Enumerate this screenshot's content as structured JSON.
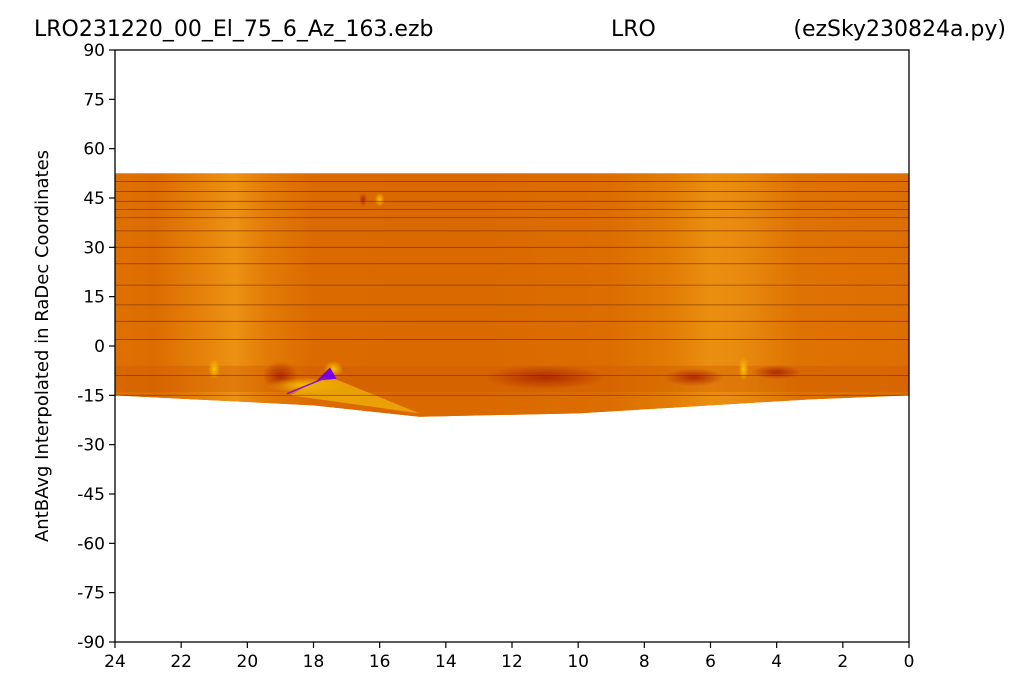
{
  "chart_data": {
    "type": "heatmap",
    "title_left": "LRO231220_00_El_75_6_Az_163.ezb",
    "title_center": "LRO",
    "title_right": "(ezSky230824a.py)",
    "ylabel": "AntBAvg Interpolated in RaDec Coordinates",
    "xlabel": "",
    "xlim": [
      24,
      0
    ],
    "ylim": [
      -90,
      90
    ],
    "xticks": [
      "24",
      "22",
      "20",
      "18",
      "16",
      "14",
      "12",
      "10",
      "8",
      "6",
      "4",
      "2",
      "0"
    ],
    "yticks": [
      "90",
      "75",
      "60",
      "45",
      "30",
      "15",
      "0",
      "-15",
      "-30",
      "-45",
      "-60",
      "-75",
      "-90"
    ],
    "colormap": "gnuplot",
    "colors": {
      "base": "#df7100",
      "bright": "#f0a000",
      "hot": "#f7c000",
      "dark": "#b33000",
      "low": "#7a00e6"
    },
    "coverage": {
      "dec_top": 52.5,
      "dec_band_bottom": -15,
      "dip_center_ra": 14.8,
      "dip_min_dec": -21.5
    },
    "scan_declinations": [
      50,
      47,
      44,
      41.5,
      39,
      35,
      30,
      25,
      18.5,
      12.5,
      7.5,
      2,
      -9
    ]
  }
}
